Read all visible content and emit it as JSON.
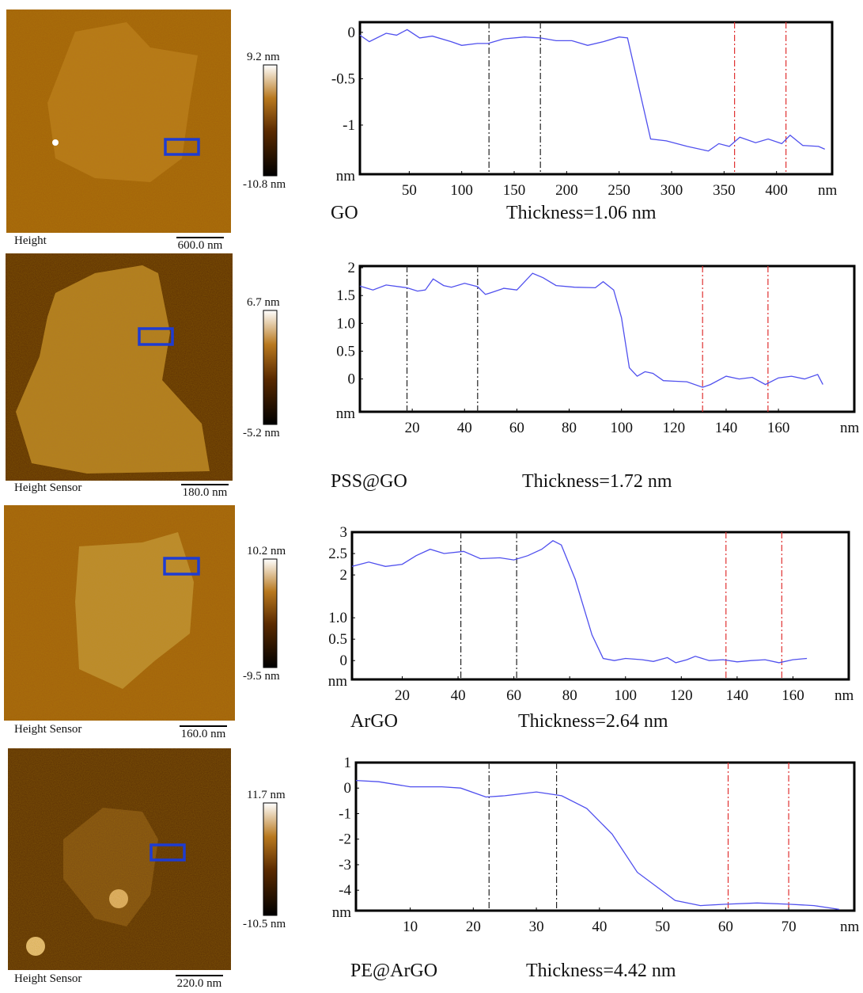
{
  "images": [
    {
      "label": "Height",
      "scale_bar": "600.0 nm",
      "colorbar_max": "9.2 nm",
      "colorbar_min": "-10.8 nm"
    },
    {
      "label": "Height Sensor",
      "scale_bar": "180.0 nm",
      "colorbar_max": "6.7 nm",
      "colorbar_min": "-5.2 nm"
    },
    {
      "label": "Height Sensor",
      "scale_bar": "160.0 nm",
      "colorbar_max": "10.2 nm",
      "colorbar_min": "-9.5 nm"
    },
    {
      "label": "Height Sensor",
      "scale_bar": "220.0 nm",
      "colorbar_max": "11.7 nm",
      "colorbar_min": "-10.5 nm"
    }
  ],
  "chart_data": [
    {
      "type": "line",
      "title": "GO",
      "annotation": "Thickness=1.06 nm",
      "x_label": "nm",
      "y_label": "nm",
      "color": "#5050ee",
      "x": [
        3,
        12,
        28,
        38,
        48,
        60,
        72,
        90,
        100,
        115,
        125,
        140,
        160,
        175,
        190,
        205,
        220,
        235,
        250,
        258,
        280,
        295,
        315,
        335,
        345,
        355,
        365,
        380,
        392,
        405,
        413,
        425,
        440,
        446
      ],
      "values": [
        -0.03,
        -0.1,
        -0.01,
        -0.03,
        0.03,
        -0.06,
        -0.04,
        -0.1,
        -0.14,
        -0.12,
        -0.12,
        -0.07,
        -0.05,
        -0.06,
        -0.09,
        -0.09,
        -0.14,
        -0.1,
        -0.05,
        -0.06,
        -1.15,
        -1.17,
        -1.23,
        -1.28,
        -1.2,
        -1.23,
        -1.13,
        -1.19,
        -1.15,
        -1.2,
        -1.11,
        -1.22,
        -1.23,
        -1.26
      ],
      "xlim": [
        3,
        453
      ],
      "ylim": [
        -1.53,
        0.11
      ],
      "xticks": [
        50,
        100,
        150,
        200,
        250,
        300,
        350,
        400
      ],
      "yticks": [
        0,
        -0.5,
        -1
      ],
      "cursors": [
        {
          "x": 126,
          "color": "#222222"
        },
        {
          "x": 175,
          "color": "#222222"
        },
        {
          "x": 360,
          "color": "#e03030"
        },
        {
          "x": 409,
          "color": "#e03030"
        }
      ]
    },
    {
      "type": "line",
      "title": "PSS@GO",
      "annotation": "Thickness=1.72 nm",
      "x_label": "nm",
      "y_label": "nm",
      "color": "#5050ee",
      "x": [
        0,
        5,
        10,
        18,
        22,
        25,
        28,
        32,
        35,
        40,
        45,
        48,
        50,
        55,
        60,
        66,
        70,
        75,
        82,
        90,
        93,
        97,
        100,
        103,
        106,
        109,
        112,
        116,
        120,
        125,
        131,
        134,
        140,
        145,
        150,
        155,
        160,
        165,
        170,
        175,
        177
      ],
      "values": [
        1.67,
        1.6,
        1.69,
        1.64,
        1.58,
        1.6,
        1.8,
        1.68,
        1.65,
        1.72,
        1.66,
        1.52,
        1.55,
        1.63,
        1.6,
        1.9,
        1.82,
        1.68,
        1.65,
        1.64,
        1.75,
        1.6,
        1.1,
        0.2,
        0.05,
        0.13,
        0.1,
        -0.03,
        -0.04,
        -0.05,
        -0.15,
        -0.1,
        0.05,
        0,
        0.03,
        -0.1,
        0.02,
        0.05,
        0,
        0.08,
        -0.1
      ],
      "xlim": [
        0,
        189
      ],
      "ylim": [
        -0.59,
        2.03
      ],
      "xticks": [
        20,
        40,
        60,
        80,
        100,
        120,
        140,
        160
      ],
      "yticks": [
        0,
        0.5,
        {
          "value": 1,
          "label": "1.0"
        },
        1.5,
        2
      ],
      "cursors": [
        {
          "x": 18,
          "color": "#222222"
        },
        {
          "x": 45,
          "color": "#222222"
        },
        {
          "x": 131,
          "color": "#e03030"
        },
        {
          "x": 156,
          "color": "#e03030"
        }
      ]
    },
    {
      "type": "line",
      "title": "ArGO",
      "annotation": "Thickness=2.64 nm",
      "x_label": "nm",
      "y_label": "nm",
      "color": "#5050ee",
      "x": [
        2,
        8,
        14,
        20,
        25,
        30,
        35,
        42,
        48,
        55,
        60,
        65,
        70,
        74,
        77,
        82,
        88,
        92,
        96,
        100,
        106,
        110,
        115,
        118,
        122,
        125,
        130,
        135,
        140,
        145,
        150,
        155,
        160,
        165
      ],
      "values": [
        2.2,
        2.3,
        2.2,
        2.25,
        2.45,
        2.6,
        2.5,
        2.55,
        2.38,
        2.4,
        2.35,
        2.45,
        2.6,
        2.8,
        2.7,
        1.9,
        0.6,
        0.05,
        0,
        0.05,
        0.02,
        -0.02,
        0.07,
        -0.05,
        0.02,
        0.1,
        0,
        0.02,
        -0.03,
        0,
        0.02,
        -0.05,
        0.02,
        0.05
      ],
      "xlim": [
        2,
        180
      ],
      "ylim": [
        -0.44,
        3
      ],
      "xticks": [
        20,
        40,
        60,
        80,
        100,
        120,
        140,
        160
      ],
      "yticks": [
        0,
        0.5,
        {
          "value": 1,
          "label": "1.0"
        },
        2,
        2.5,
        3
      ],
      "cursors": [
        {
          "x": 41,
          "color": "#222222"
        },
        {
          "x": 61,
          "color": "#222222"
        },
        {
          "x": 136,
          "color": "#e03030"
        },
        {
          "x": 156,
          "color": "#e03030"
        }
      ]
    },
    {
      "type": "line",
      "title": "PE@ArGO",
      "annotation": "Thickness=4.42 nm",
      "x_label": "nm",
      "y_label": "nm",
      "color": "#5050ee",
      "x": [
        1.4,
        5,
        10,
        15,
        18,
        22,
        25,
        30,
        34,
        38,
        42,
        46,
        52,
        56,
        60,
        65,
        70,
        74,
        78
      ],
      "values": [
        0.3,
        0.25,
        0.05,
        0.05,
        0,
        -0.35,
        -0.3,
        -0.15,
        -0.3,
        -0.8,
        -1.8,
        -3.3,
        -4.4,
        -4.6,
        -4.55,
        -4.5,
        -4.55,
        -4.6,
        -4.75
      ],
      "xlim": [
        1.4,
        80.4
      ],
      "ylim": [
        -4.8,
        1
      ],
      "xticks": [
        10,
        20,
        30,
        40,
        50,
        60,
        70
      ],
      "yticks": [
        1,
        0,
        -1,
        -2,
        -3,
        -4
      ],
      "cursors": [
        {
          "x": 22.5,
          "color": "#222222"
        },
        {
          "x": 33.2,
          "color": "#222222"
        },
        {
          "x": 60.4,
          "color": "#e03030"
        },
        {
          "x": 70,
          "color": "#e03030"
        }
      ]
    }
  ]
}
